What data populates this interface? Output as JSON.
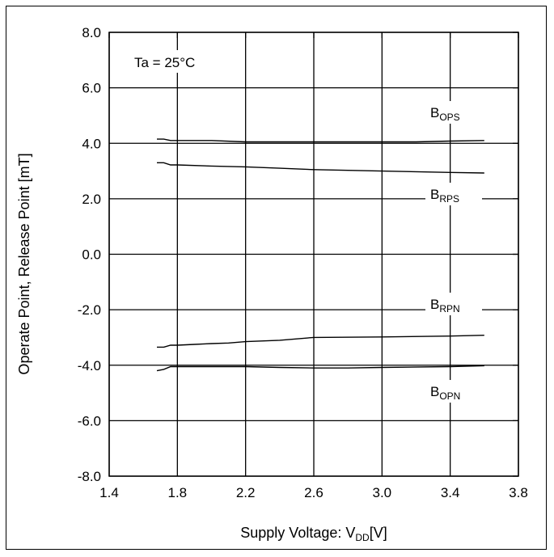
{
  "chart_data": {
    "type": "line",
    "title": "",
    "xlabel": {
      "main": "Supply Voltage: V",
      "sub": "DD",
      "tail": "[V]"
    },
    "ylabel": "Operate Point, Release Point [mT]",
    "xlim": [
      1.4,
      3.8
    ],
    "ylim": [
      -8.0,
      8.0
    ],
    "xticks": [
      "1.4",
      "1.8",
      "2.2",
      "2.6",
      "3.0",
      "3.4",
      "3.8"
    ],
    "yticks": [
      "8.0",
      "6.0",
      "4.0",
      "2.0",
      "0.0",
      "-2.0",
      "-4.0",
      "-6.0",
      "-8.0"
    ],
    "grid": true,
    "annotation": "Ta = 25°C",
    "series": [
      {
        "name": "B_OPS",
        "label_main": "B",
        "label_sub": "OPS",
        "x": [
          1.68,
          1.72,
          1.76,
          1.8,
          2.0,
          2.2,
          2.6,
          3.0,
          3.2,
          3.4,
          3.6
        ],
        "y": [
          4.15,
          4.15,
          4.1,
          4.1,
          4.1,
          4.05,
          4.05,
          4.05,
          4.05,
          4.08,
          4.1
        ]
      },
      {
        "name": "B_RPS",
        "label_main": "B",
        "label_sub": "RPS",
        "x": [
          1.68,
          1.72,
          1.76,
          1.8,
          2.0,
          2.2,
          2.4,
          2.6,
          3.0,
          3.4,
          3.6
        ],
        "y": [
          3.3,
          3.3,
          3.22,
          3.22,
          3.18,
          3.15,
          3.1,
          3.05,
          3.0,
          2.95,
          2.93
        ]
      },
      {
        "name": "B_RPN",
        "label_main": "B",
        "label_sub": "RPN",
        "x": [
          1.68,
          1.72,
          1.76,
          1.8,
          1.9,
          2.0,
          2.1,
          2.2,
          2.4,
          2.6,
          3.0,
          3.4,
          3.6
        ],
        "y": [
          -3.35,
          -3.35,
          -3.28,
          -3.28,
          -3.25,
          -3.22,
          -3.2,
          -3.15,
          -3.1,
          -3.0,
          -2.98,
          -2.95,
          -2.92
        ]
      },
      {
        "name": "B_OPN",
        "label_main": "B",
        "label_sub": "OPN",
        "x": [
          1.68,
          1.72,
          1.76,
          1.8,
          2.0,
          2.2,
          2.4,
          2.6,
          2.8,
          3.0,
          3.4,
          3.6
        ],
        "y": [
          -4.2,
          -4.15,
          -4.05,
          -4.05,
          -4.05,
          -4.05,
          -4.08,
          -4.1,
          -4.1,
          -4.08,
          -4.05,
          -4.02
        ]
      }
    ]
  }
}
